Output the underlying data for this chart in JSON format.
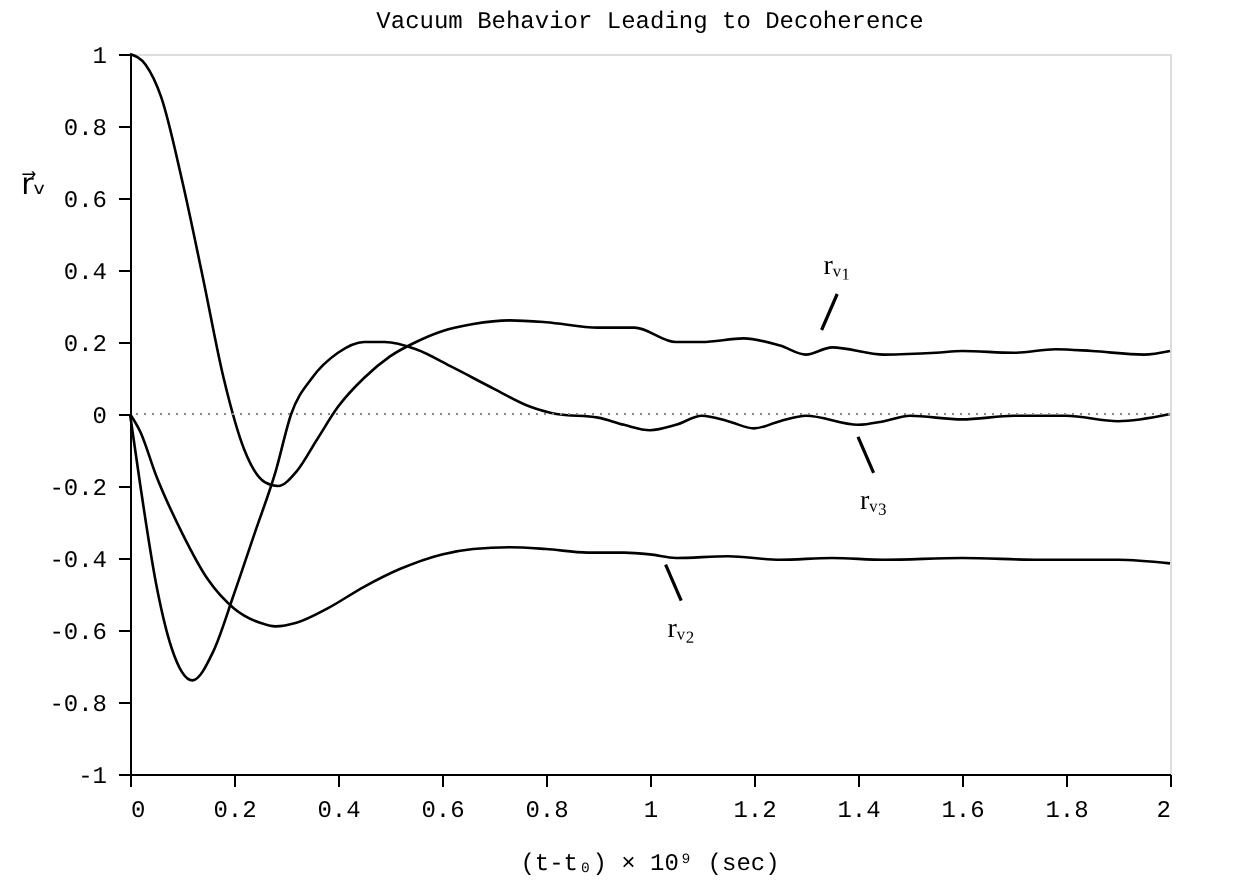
{
  "chart_data": {
    "type": "line",
    "title": "Vacuum Behavior Leading to Decoherence",
    "xlabel": "(t-t₀) × 10⁹ (sec)",
    "ylabel": "r⃗ᵥ",
    "xlim": [
      0,
      2
    ],
    "xticks": [
      0,
      0.2,
      0.4,
      0.6,
      0.8,
      1,
      1.2,
      1.4,
      1.6,
      1.8,
      2
    ],
    "ylim": [
      -1,
      1
    ],
    "yticks": [
      -1,
      -0.8,
      -0.6,
      -0.4,
      -0.2,
      0,
      0.2,
      0.4,
      0.6,
      0.8,
      1
    ],
    "marker": "none",
    "line_style": "solid",
    "series": [
      {
        "color": "#000000",
        "x": [
          0,
          0.03,
          0.06,
          0.1,
          0.14,
          0.18,
          0.22,
          0.26,
          0.285,
          0.32,
          0.36,
          0.4,
          0.45,
          0.5,
          0.55,
          0.6,
          0.66,
          0.73,
          0.8,
          0.9,
          0.97,
          1.05,
          1.1,
          1.18,
          1.25,
          1.3,
          1.35,
          1.45,
          1.55,
          1.6,
          1.7,
          1.78,
          1.85,
          1.95,
          2
        ],
        "values": [
          1,
          0.97,
          0.88,
          0.65,
          0.38,
          0.1,
          -0.1,
          -0.19,
          -0.2,
          -0.16,
          -0.07,
          0.02,
          0.1,
          0.16,
          0.2,
          0.23,
          0.25,
          0.26,
          0.255,
          0.24,
          0.24,
          0.2,
          0.2,
          0.21,
          0.19,
          0.165,
          0.185,
          0.165,
          0.17,
          0.175,
          0.17,
          0.18,
          0.175,
          0.165,
          0.175
        ]
      },
      {
        "color": "#000000",
        "x": [
          0,
          0.02,
          0.05,
          0.1,
          0.15,
          0.2,
          0.25,
          0.28,
          0.32,
          0.38,
          0.45,
          0.52,
          0.6,
          0.66,
          0.73,
          0.8,
          0.88,
          0.95,
          1.0,
          1.05,
          1.15,
          1.25,
          1.35,
          1.45,
          1.6,
          1.75,
          1.9,
          2
        ],
        "values": [
          0,
          -0.05,
          -0.17,
          -0.33,
          -0.46,
          -0.54,
          -0.58,
          -0.59,
          -0.58,
          -0.54,
          -0.48,
          -0.43,
          -0.39,
          -0.375,
          -0.37,
          -0.375,
          -0.385,
          -0.385,
          -0.39,
          -0.4,
          -0.395,
          -0.405,
          -0.4,
          -0.405,
          -0.4,
          -0.405,
          -0.405,
          -0.415
        ]
      },
      {
        "color": "#000000",
        "x": [
          0,
          0.02,
          0.05,
          0.08,
          0.12,
          0.16,
          0.2,
          0.24,
          0.28,
          0.31,
          0.35,
          0.4,
          0.45,
          0.49,
          0.55,
          0.62,
          0.7,
          0.77,
          0.82,
          0.9,
          0.95,
          1.0,
          1.05,
          1.1,
          1.15,
          1.2,
          1.25,
          1.3,
          1.4,
          1.45,
          1.5,
          1.6,
          1.7,
          1.8,
          1.9,
          2
        ],
        "values": [
          0,
          -0.2,
          -0.47,
          -0.65,
          -0.74,
          -0.66,
          -0.5,
          -0.33,
          -0.16,
          0.0,
          0.1,
          0.17,
          0.2,
          0.2,
          0.18,
          0.13,
          0.07,
          0.02,
          0.0,
          -0.01,
          -0.03,
          -0.045,
          -0.03,
          -0.005,
          -0.02,
          -0.04,
          -0.02,
          -0.005,
          -0.03,
          -0.02,
          -0.005,
          -0.015,
          -0.005,
          -0.005,
          -0.02,
          0.0
        ]
      }
    ],
    "ref_lines": [
      {
        "axis": "y",
        "value": 0,
        "line_style": "dotted",
        "color": "#888888"
      }
    ],
    "annotations": [
      {
        "text": "rᵥ₁",
        "x": 1.33,
        "y": 0.2
      },
      {
        "text": "rᵥ₃",
        "x": 1.4,
        "y": -0.03
      },
      {
        "text": "rᵥ₂",
        "x": 1.03,
        "y": -0.385
      }
    ]
  }
}
